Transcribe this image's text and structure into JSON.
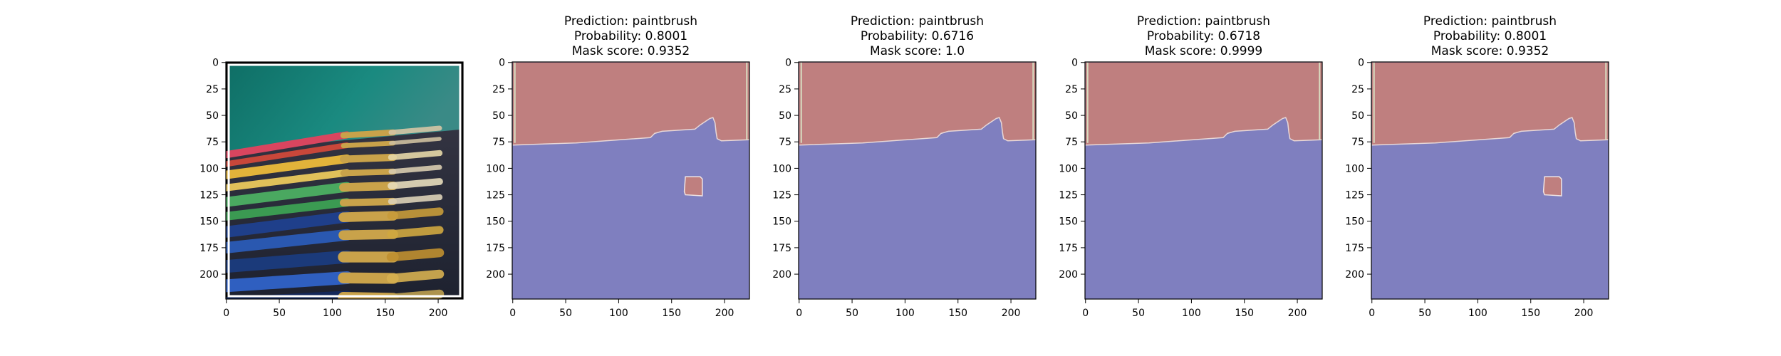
{
  "chart_data": [
    {
      "type": "image",
      "title_lines": [],
      "image_size": [
        224,
        224
      ],
      "x_ticks": [
        0,
        50,
        100,
        150,
        200
      ],
      "y_ticks": [
        0,
        25,
        50,
        75,
        100,
        125,
        150,
        175,
        200
      ],
      "content": "photo of paintbrushes"
    },
    {
      "type": "mask",
      "title_lines": [
        "Prediction: paintbrush",
        "Probability: 0.8001",
        "Mask score: 0.9352"
      ],
      "prediction": "paintbrush",
      "probability": 0.8001,
      "mask_score": 0.9352,
      "image_size": [
        224,
        224
      ],
      "x_ticks": [
        0,
        50,
        100,
        150,
        200
      ],
      "y_ticks": [
        0,
        25,
        50,
        75,
        100,
        125,
        150,
        175,
        200
      ],
      "has_patch": true
    },
    {
      "type": "mask",
      "title_lines": [
        "Prediction: paintbrush",
        "Probability: 0.6716",
        "Mask score: 1.0"
      ],
      "prediction": "paintbrush",
      "probability": 0.6716,
      "mask_score": 1.0,
      "image_size": [
        224,
        224
      ],
      "x_ticks": [
        0,
        50,
        100,
        150,
        200
      ],
      "y_ticks": [
        0,
        25,
        50,
        75,
        100,
        125,
        150,
        175,
        200
      ],
      "has_patch": false
    },
    {
      "type": "mask",
      "title_lines": [
        "Prediction: paintbrush",
        "Probability: 0.6718",
        "Mask score: 0.9999"
      ],
      "prediction": "paintbrush",
      "probability": 0.6718,
      "mask_score": 0.9999,
      "image_size": [
        224,
        224
      ],
      "x_ticks": [
        0,
        50,
        100,
        150,
        200
      ],
      "y_ticks": [
        0,
        25,
        50,
        75,
        100,
        125,
        150,
        175,
        200
      ],
      "has_patch": false
    },
    {
      "type": "mask",
      "title_lines": [
        "Prediction: paintbrush",
        "Probability: 0.8001",
        "Mask score: 0.9352"
      ],
      "prediction": "paintbrush",
      "probability": 0.8001,
      "mask_score": 0.9352,
      "image_size": [
        224,
        224
      ],
      "x_ticks": [
        0,
        50,
        100,
        150,
        200
      ],
      "y_ticks": [
        0,
        25,
        50,
        75,
        100,
        125,
        150,
        175,
        200
      ],
      "has_patch": true
    }
  ],
  "colors": {
    "mask_top": "#bf7f7f",
    "mask_bottom": "#7f7fbf",
    "axis": "#000000"
  }
}
